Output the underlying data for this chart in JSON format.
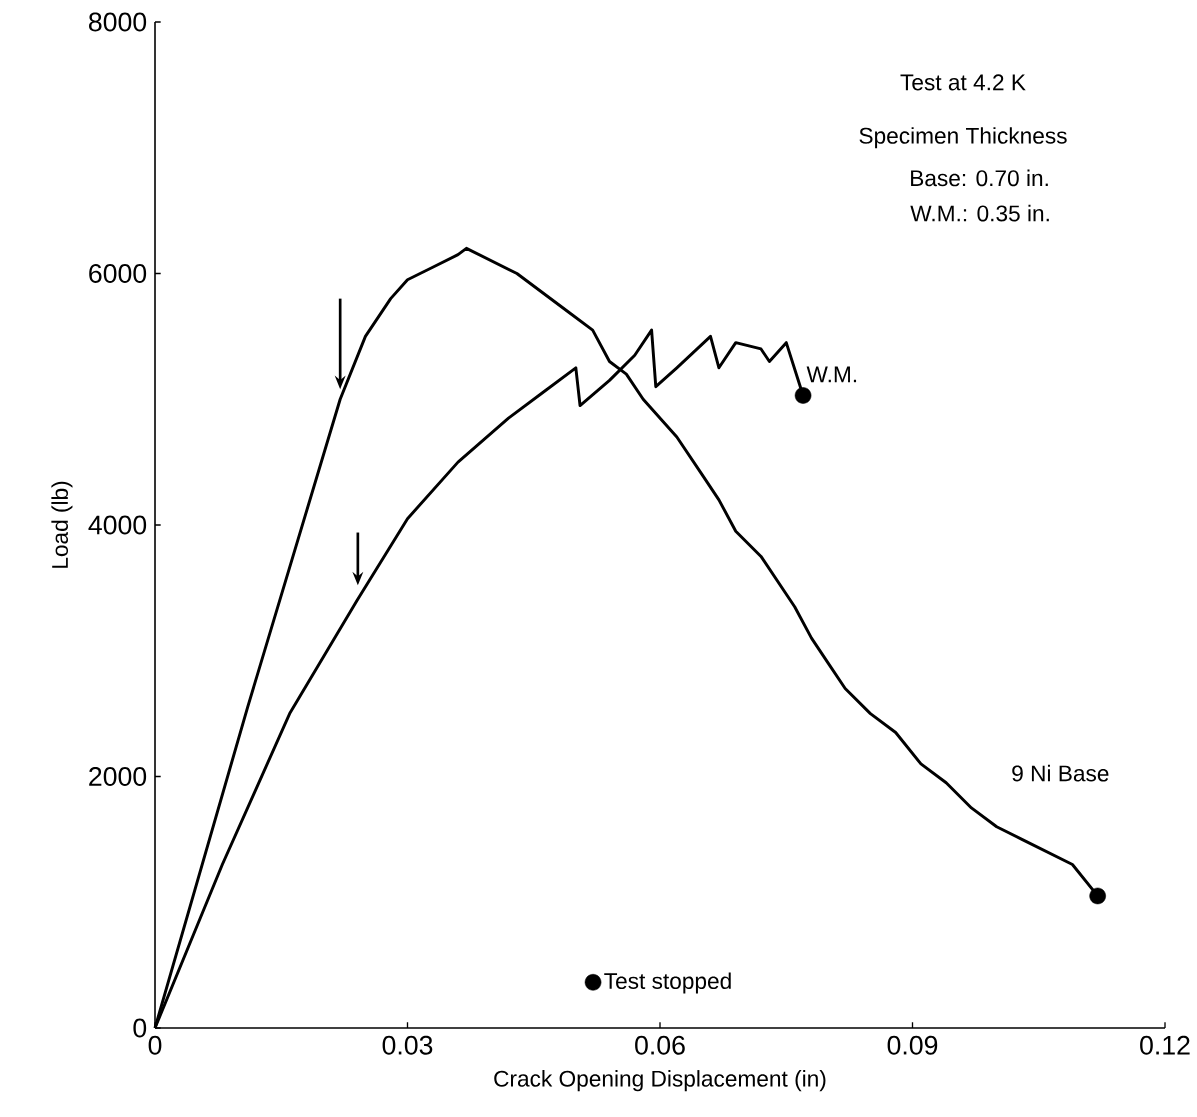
{
  "chart_data": {
    "type": "line",
    "xlabel": "Crack Opening Displacement (in)",
    "ylabel": "Load (lb)",
    "xlim": [
      0,
      0.12
    ],
    "ylim": [
      0,
      8000
    ],
    "xticks": [
      0,
      0.03,
      0.06,
      0.09,
      0.12
    ],
    "yticks": [
      0,
      2000,
      4000,
      6000,
      8000
    ],
    "grid": false,
    "legend": "bottom",
    "line_style": "solid",
    "annotations": [
      "Test at 4.2 K",
      "Specimen Thickness",
      "Base: 0.70 in.",
      "W.M.: 0.35 in."
    ],
    "series": [
      {
        "name": "9 Ni Base",
        "type": "line",
        "color": "#000000",
        "x": [
          0,
          0.011,
          0.022,
          0.025,
          0.028,
          0.03,
          0.033,
          0.036,
          0.037,
          0.04,
          0.043,
          0.046,
          0.049,
          0.052,
          0.054,
          0.056,
          0.058,
          0.06,
          0.062,
          0.065,
          0.067,
          0.069,
          0.072,
          0.074,
          0.076,
          0.078,
          0.08,
          0.082,
          0.085,
          0.088,
          0.091,
          0.094,
          0.097,
          0.1,
          0.103,
          0.106,
          0.109,
          0.112
        ],
        "values": [
          0,
          2550,
          5000,
          5500,
          5800,
          5950,
          6050,
          6150,
          6200,
          6100,
          6000,
          5850,
          5700,
          5550,
          5300,
          5200,
          5000,
          4850,
          4700,
          4400,
          4200,
          3950,
          3750,
          3550,
          3350,
          3100,
          2900,
          2700,
          2500,
          2350,
          2100,
          1950,
          1750,
          1600,
          1500,
          1400,
          1300,
          1050
        ]
      },
      {
        "name": "W.M.",
        "type": "line",
        "color": "#000000",
        "x": [
          0,
          0.008,
          0.016,
          0.024,
          0.03,
          0.036,
          0.042,
          0.046,
          0.05,
          0.0505,
          0.054,
          0.057,
          0.059,
          0.0595,
          0.062,
          0.066,
          0.067,
          0.069,
          0.072,
          0.073,
          0.075,
          0.077
        ],
        "values": [
          0,
          1300,
          2500,
          3400,
          4050,
          4500,
          4850,
          5050,
          5250,
          4950,
          5150,
          5350,
          5550,
          5100,
          5250,
          5500,
          5250,
          5450,
          5400,
          5300,
          5450,
          5030
        ]
      },
      {
        "name": "Test stopped",
        "type": "scatter",
        "color": "#000000",
        "marker": "circle",
        "x": [
          0.077,
          0.112
        ],
        "values": [
          5030,
          1050
        ]
      }
    ]
  }
}
